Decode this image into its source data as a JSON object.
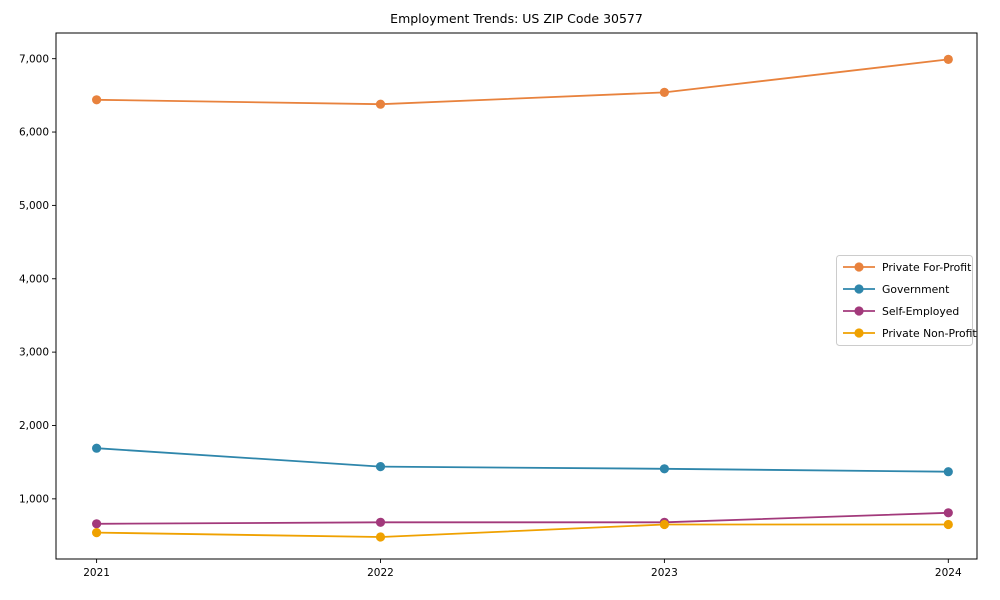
{
  "chart_data": {
    "type": "line",
    "title": "Employment Trends: US ZIP Code 30577",
    "xlabel": "",
    "ylabel": "",
    "categories": [
      2021,
      2022,
      2023,
      2024
    ],
    "series": [
      {
        "name": "Private For-Profit",
        "color": "#E8823D",
        "values": [
          6440,
          6380,
          6540,
          6990
        ]
      },
      {
        "name": "Government",
        "color": "#2E86AB",
        "values": [
          1690,
          1440,
          1410,
          1370
        ]
      },
      {
        "name": "Self-Employed",
        "color": "#A2397B",
        "values": [
          660,
          680,
          680,
          810
        ]
      },
      {
        "name": "Private Non-Profit",
        "color": "#EFA100",
        "values": [
          540,
          480,
          650,
          650
        ]
      }
    ],
    "yticks": [
      1000,
      2000,
      3000,
      4000,
      5000,
      6000,
      7000
    ],
    "ytick_labels": [
      "1,000",
      "2,000",
      "3,000",
      "4,000",
      "5,000",
      "6,000",
      "7,000"
    ],
    "xtick_labels": [
      "2021",
      "2022",
      "2023",
      "2024"
    ],
    "ylim": [
      180,
      7350
    ],
    "xlim": [
      2020.857,
      2024.101
    ],
    "grid": false,
    "legend_position": "center right",
    "axis_color": "#000000",
    "background_color": "#ffffff"
  }
}
